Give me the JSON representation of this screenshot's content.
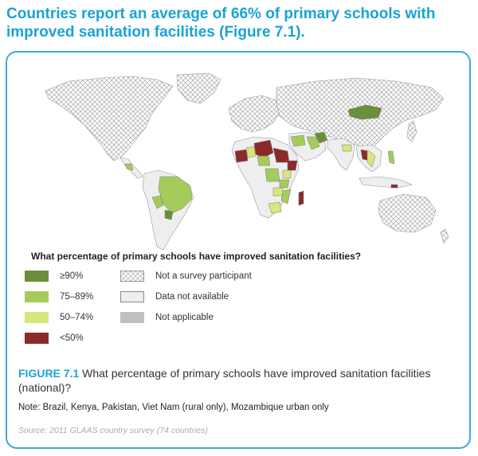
{
  "headline": "Countries report an average of 66% of primary schools with improved sanitation facilities (Figure 7.1).",
  "legend": {
    "title": "What percentage of primary schools have improved sanitation facilities?",
    "categories": [
      {
        "label": "≥90%",
        "color": "#6a8f3a"
      },
      {
        "label": "75–89%",
        "color": "#a5cc5b"
      },
      {
        "label": "50–74%",
        "color": "#d9e67c"
      },
      {
        "label": "<50%",
        "color": "#8c2a2a"
      }
    ],
    "other": [
      {
        "label": "Not a survey participant",
        "style": "hatched"
      },
      {
        "label": "Data not available",
        "color": "#eeeeee"
      },
      {
        "label": "Not applicable",
        "color": "#bfbfbf"
      }
    ]
  },
  "figure": {
    "number": "FIGURE 7.1",
    "caption": "What percentage of primary schools have improved sanitation facilities (national)?",
    "note": "Note: Brazil, Kenya, Pakistan, Viet Nam (rural only), Mozambique urban only",
    "source": "Source: 2011 GLAAS country survey (74 countries)"
  },
  "colors": {
    "accent": "#1aa3d6",
    "border": "#3aaadc",
    "hatch_line": "#a8a8a8",
    "no_data": "#eeeeee"
  }
}
